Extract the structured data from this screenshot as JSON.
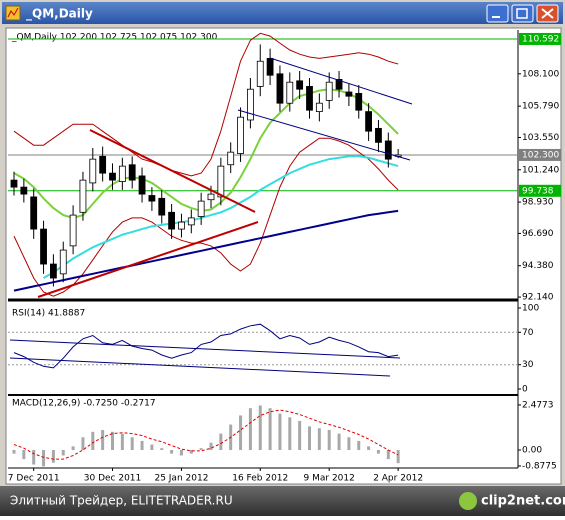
{
  "window": {
    "title": "_QM,Daily"
  },
  "footer": {
    "text": "Элитный Трейдер, ELITETRADER.RU",
    "logo": "clip2net.com"
  },
  "chart_data": [
    {
      "type": "candlestick",
      "title": "_QM,Daily  102.200 102.725 102.075 102.300",
      "ylim": [
        91.93,
        111.09
      ],
      "yticks": [
        {
          "value": 108.1,
          "label": "108.100"
        },
        {
          "value": 105.79,
          "label": "105.790"
        },
        {
          "value": 103.55,
          "label": "103.550"
        },
        {
          "value": 101.24,
          "label": "101.240"
        },
        {
          "value": 98.93,
          "label": "98.930"
        },
        {
          "value": 96.69,
          "label": "96.690"
        },
        {
          "value": 94.38,
          "label": "94.380"
        },
        {
          "value": 92.14,
          "label": "92.140"
        }
      ],
      "levels": [
        {
          "value": 110.592,
          "label": "110.592",
          "color": "#00b400"
        },
        {
          "value": 102.3,
          "label": "102.300",
          "color": "#808080"
        },
        {
          "value": 99.738,
          "label": "99.738",
          "color": "#00b400"
        }
      ],
      "open": [
        100.5,
        100,
        99.3,
        97,
        94.5,
        93.8,
        95.8,
        98.2,
        100.3,
        102.2,
        101,
        100.4,
        101.6,
        100.8,
        99.4,
        99.2,
        98.2,
        97,
        97.3,
        97.9,
        99.1,
        99.3,
        101.6,
        102.4,
        104.8,
        107.2,
        109.2,
        108.1,
        106,
        107.6,
        107.2,
        105.4,
        106.2,
        107.7,
        106.8,
        106.7,
        105.4,
        104.2,
        103.3,
        102.2
      ],
      "high": [
        101.1,
        100.6,
        99.9,
        97.6,
        95.2,
        96.1,
        98.7,
        101.1,
        102.8,
        102.9,
        101.7,
        102.1,
        102.2,
        101.4,
        100,
        99.8,
        98.8,
        98.1,
        98.4,
        99.6,
        100.1,
        102.1,
        103.2,
        105.7,
        107.8,
        110.2,
        109.9,
        108.7,
        108.2,
        108.3,
        107.8,
        106.7,
        108.2,
        108.3,
        107.4,
        107.3,
        106,
        104.8,
        103.9,
        102.725
      ],
      "low": [
        99.4,
        98.9,
        96.3,
        93.8,
        92.9,
        93.2,
        95.2,
        97.6,
        99.7,
        100.4,
        99.8,
        99.8,
        99.9,
        98.9,
        98.3,
        97.4,
        96.3,
        96.4,
        96.7,
        97.3,
        98.5,
        98.7,
        101,
        101.8,
        104.2,
        106.5,
        107.3,
        105.4,
        105.4,
        106.3,
        104.9,
        104.7,
        105.6,
        106.4,
        105.8,
        104.9,
        103.3,
        102.5,
        101.4,
        102.075
      ],
      "close": [
        100,
        99.5,
        97,
        94.5,
        93.5,
        95.5,
        98,
        100.5,
        102,
        101,
        100.5,
        101.5,
        100.5,
        99.5,
        99,
        98,
        97,
        97.5,
        97.8,
        99,
        99.5,
        101.5,
        102.5,
        105,
        107,
        109,
        108,
        106,
        107.5,
        107,
        105.5,
        106,
        107.5,
        107,
        106.5,
        105.5,
        104,
        103.2,
        102,
        102.3
      ],
      "up_color": "#ffffff",
      "down_color": "#000000",
      "overlays": [
        {
          "color": "#b00000",
          "values": [
            104,
            103.5,
            103,
            103,
            103.5,
            104,
            104.5,
            104.5,
            104.5,
            104,
            103.5,
            103,
            102.5,
            102,
            101.8,
            101.5,
            101.2,
            101,
            100.8,
            101,
            102,
            104,
            106.5,
            109,
            110.5,
            111,
            110.8,
            110.3,
            109.8,
            109.5,
            109.3,
            109.2,
            109.3,
            109.4,
            109.5,
            109.6,
            109.5,
            109.3,
            109,
            108.8
          ]
        },
        {
          "color": "#b00000",
          "values": [
            96.5,
            95,
            93.5,
            92.5,
            92.2,
            92.5,
            93,
            93.8,
            94.8,
            95.8,
            96.8,
            97.5,
            97.8,
            97.8,
            97.5,
            97,
            96.5,
            96.2,
            96,
            96,
            95.8,
            95.3,
            94.5,
            94,
            94.5,
            96,
            98,
            100,
            101.5,
            102.5,
            103,
            103.5,
            103.5,
            103.3,
            103,
            102.5,
            102,
            101.3,
            100.5,
            99.8
          ]
        },
        {
          "color": "#00008c",
          "values": [
            92.6,
            92.75,
            92.9,
            93.05,
            93.2,
            93.35,
            93.5,
            93.65,
            93.8,
            93.95,
            94.1,
            94.25,
            94.4,
            94.55,
            94.7,
            94.85,
            95,
            95.15,
            95.3,
            95.45,
            95.6,
            95.75,
            95.9,
            96.05,
            96.2,
            96.35,
            96.5,
            96.65,
            96.8,
            96.95,
            97.1,
            97.25,
            97.4,
            97.55,
            97.7,
            97.85,
            98,
            98.1,
            98.2,
            98.3
          ]
        },
        {
          "color": "#33dde0",
          "values": [
            null,
            null,
            null,
            93.5,
            93.9,
            94.4,
            94.9,
            95.3,
            95.7,
            96,
            96.3,
            96.6,
            96.8,
            97,
            97.2,
            97.3,
            97.4,
            97.5,
            97.6,
            97.8,
            98,
            98.2,
            98.5,
            98.9,
            99.3,
            99.8,
            100.2,
            100.6,
            101,
            101.3,
            101.6,
            101.8,
            102,
            102.1,
            102.2,
            102.2,
            102.1,
            101.9,
            101.7,
            101.5
          ]
        },
        {
          "color": "#7ad23a",
          "values": [
            101,
            100.6,
            100,
            99.2,
            98.5,
            98,
            97.8,
            98,
            98.8,
            99.6,
            100.2,
            100.6,
            100.7,
            100.6,
            100.3,
            99.8,
            99.3,
            98.8,
            98.5,
            98.3,
            98.4,
            98.9,
            99.6,
            100.7,
            102,
            103.5,
            104.6,
            105.3,
            106,
            106.5,
            106.7,
            106.9,
            107,
            106.9,
            106.7,
            106.3,
            105.8,
            105.2,
            104.5,
            103.8
          ]
        }
      ]
    },
    {
      "type": "line",
      "title": "RSI(14) 41.8887",
      "ylim": [
        0,
        100
      ],
      "yticks": [
        0,
        30,
        70,
        100
      ],
      "levels": [
        30,
        70
      ],
      "color": "#000080",
      "values": [
        45,
        40,
        33,
        28,
        26,
        38,
        52,
        62,
        66,
        57,
        55,
        60,
        53,
        50,
        48,
        42,
        38,
        42,
        45,
        55,
        58,
        66,
        68,
        74,
        78,
        80,
        72,
        62,
        66,
        63,
        55,
        58,
        64,
        60,
        57,
        52,
        46,
        45,
        40,
        41.8887
      ]
    },
    {
      "type": "macd",
      "title": "MACD(12,26,9) -0.7250 -0.2717",
      "ylim": [
        -1.1,
        2.86
      ],
      "yticks": [
        2.4773,
        {
          "value": 0,
          "label": "0.00"
        },
        -0.8775
      ],
      "histogram_color": "#a8a8a8",
      "signal_color": "#e00000",
      "signal_style": "dashed",
      "histogram": [
        -0.2,
        -0.5,
        -0.8,
        -0.9,
        -0.7,
        -0.3,
        0.2,
        0.7,
        1.0,
        1.1,
        1.0,
        0.9,
        0.7,
        0.5,
        0.3,
        0.1,
        -0.2,
        -0.3,
        -0.2,
        0.1,
        0.4,
        0.9,
        1.4,
        1.9,
        2.3,
        2.45,
        2.3,
        2.0,
        1.8,
        1.6,
        1.3,
        1.2,
        1.1,
        0.9,
        0.7,
        0.5,
        0.2,
        -0.2,
        -0.5,
        -0.725
      ],
      "signal": [
        0.3,
        0.1,
        -0.2,
        -0.4,
        -0.5,
        -0.5,
        -0.3,
        0,
        0.4,
        0.7,
        0.9,
        0.95,
        0.9,
        0.8,
        0.6,
        0.45,
        0.25,
        0.05,
        -0.05,
        -0.05,
        0.1,
        0.35,
        0.7,
        1.1,
        1.5,
        1.9,
        2.1,
        2.2,
        2.1,
        1.95,
        1.75,
        1.55,
        1.4,
        1.25,
        1.05,
        0.85,
        0.6,
        0.3,
        0,
        -0.2717
      ],
      "categories": [
        null,
        null,
        "7 Dec 2011",
        null,
        null,
        null,
        null,
        null,
        null,
        null,
        "30 Dec 2011",
        null,
        null,
        null,
        null,
        null,
        null,
        "25 Jan 2012",
        null,
        null,
        null,
        null,
        null,
        null,
        null,
        "16 Feb 2012",
        null,
        null,
        null,
        null,
        null,
        null,
        "9 Mar 2012",
        null,
        null,
        null,
        null,
        null,
        null,
        "2 Apr 2012"
      ]
    }
  ]
}
